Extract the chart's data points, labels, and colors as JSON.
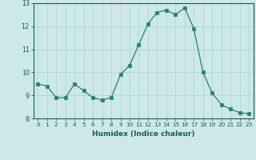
{
  "x": [
    0,
    1,
    2,
    3,
    4,
    5,
    6,
    7,
    8,
    9,
    10,
    11,
    12,
    13,
    14,
    15,
    16,
    17,
    18,
    19,
    20,
    21,
    22,
    23
  ],
  "y": [
    9.5,
    9.4,
    8.9,
    8.9,
    9.5,
    9.2,
    8.9,
    8.8,
    8.9,
    9.9,
    10.3,
    11.2,
    12.1,
    12.6,
    12.7,
    12.5,
    12.8,
    11.9,
    10.0,
    9.1,
    8.6,
    8.4,
    8.25,
    8.2
  ],
  "xlabel": "Humidex (Indice chaleur)",
  "xlim": [
    -0.5,
    23.5
  ],
  "ylim": [
    8.0,
    13.0
  ],
  "yticks": [
    8,
    9,
    10,
    11,
    12,
    13
  ],
  "xticks": [
    0,
    1,
    2,
    3,
    4,
    5,
    6,
    7,
    8,
    9,
    10,
    11,
    12,
    13,
    14,
    15,
    16,
    17,
    18,
    19,
    20,
    21,
    22,
    23
  ],
  "line_color": "#2e7d6e",
  "marker_color": "#2e7d6e",
  "bg_color": "#cce8e8",
  "grid_color": "#aad0d0",
  "label_color": "#1a5c52",
  "tick_color": "#1a5c52",
  "spine_color": "#1a5c52"
}
